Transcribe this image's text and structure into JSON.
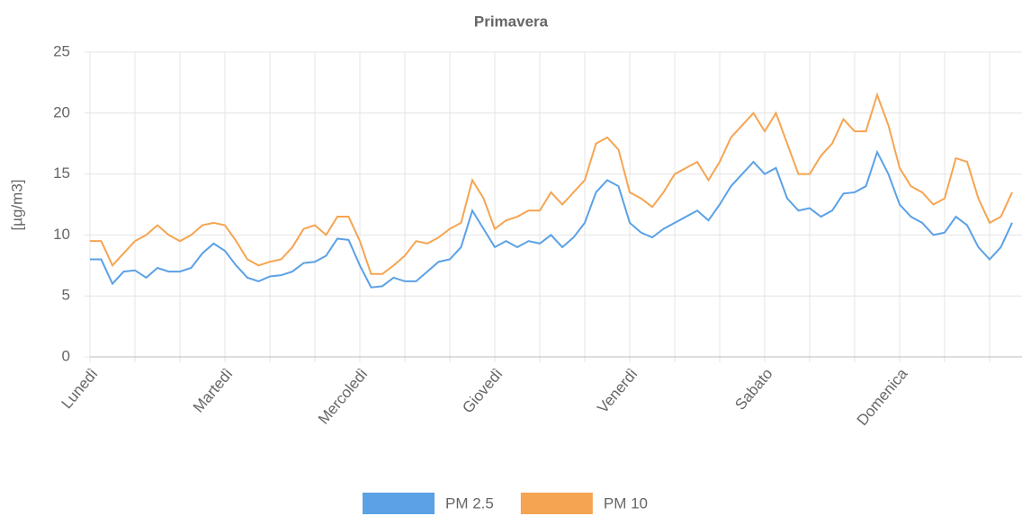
{
  "chart_data": {
    "type": "line",
    "title": "Primavera",
    "y_label": "[µg/m3]",
    "categories": [
      "Lunedì",
      null,
      null,
      null,
      null,
      null,
      null,
      null,
      null,
      null,
      null,
      null,
      "Martedì",
      null,
      null,
      null,
      null,
      null,
      null,
      null,
      null,
      null,
      null,
      null,
      "Mercoledì",
      null,
      null,
      null,
      null,
      null,
      null,
      null,
      null,
      null,
      null,
      null,
      "Giovedì",
      null,
      null,
      null,
      null,
      null,
      null,
      null,
      null,
      null,
      null,
      null,
      "Venerdì",
      null,
      null,
      null,
      null,
      null,
      null,
      null,
      null,
      null,
      null,
      null,
      "Sabato",
      null,
      null,
      null,
      null,
      null,
      null,
      null,
      null,
      null,
      null,
      null,
      "Domenica",
      null,
      null,
      null,
      null,
      null,
      null,
      null,
      null,
      null,
      null
    ],
    "series": [
      {
        "name": "PM 2.5",
        "color": "#5ba1e6",
        "values": [
          8,
          8,
          6,
          7,
          7.1,
          6.5,
          7.3,
          7,
          7,
          7.3,
          8.5,
          9.3,
          8.7,
          7.5,
          6.5,
          6.2,
          6.6,
          6.7,
          7,
          7.7,
          7.8,
          8.3,
          9.7,
          9.6,
          7.5,
          5.7,
          5.8,
          6.5,
          6.2,
          6.2,
          7,
          7.8,
          8,
          9,
          12,
          10.5,
          9,
          9.5,
          9,
          9.5,
          9.3,
          10,
          9,
          9.8,
          11,
          13.5,
          14.5,
          14,
          11,
          10.2,
          9.8,
          10.5,
          11,
          11.5,
          12,
          11.2,
          12.5,
          14,
          15,
          16,
          15,
          15.5,
          13,
          12,
          12.2,
          11.5,
          12,
          13.4,
          13.5,
          14,
          16.8,
          15,
          12.5,
          11.5,
          11,
          10,
          10.2,
          11.5,
          10.8,
          9,
          8,
          9,
          11
        ]
      },
      {
        "name": "PM 10",
        "color": "#f5a552",
        "values": [
          9.5,
          9.5,
          7.5,
          8.5,
          9.5,
          10,
          10.8,
          10,
          9.5,
          10,
          10.8,
          11,
          10.8,
          9.5,
          8,
          7.5,
          7.8,
          8,
          9,
          10.5,
          10.8,
          10,
          11.5,
          11.5,
          9.5,
          6.8,
          6.8,
          7.5,
          8.3,
          9.5,
          9.3,
          9.8,
          10.5,
          11,
          14.5,
          13,
          10.5,
          11.2,
          11.5,
          12,
          12,
          13.5,
          12.5,
          13.5,
          14.5,
          17.5,
          18,
          17,
          13.5,
          13,
          12.3,
          13.5,
          15,
          15.5,
          16,
          14.5,
          16,
          18,
          19,
          20,
          18.5,
          20,
          17.5,
          15,
          15,
          16.5,
          17.5,
          19.5,
          18.5,
          18.5,
          21.5,
          19,
          15.5,
          14,
          13.5,
          12.5,
          13,
          16.3,
          16,
          13,
          11,
          11.5,
          13.5
        ]
      }
    ],
    "ylim": [
      0,
      25
    ],
    "yticks": [
      0,
      5,
      10,
      15,
      20,
      25
    ],
    "grid": true
  }
}
